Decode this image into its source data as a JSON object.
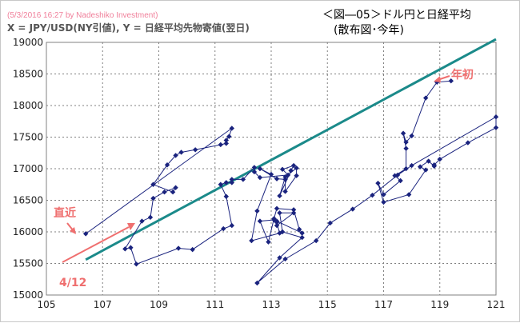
{
  "header": {
    "source_note": "(5/3/2016 16:27 by Nadeshiko Investment)",
    "axis_desc": "X = JPY/USD(NY引値), Y = 日経平均先物寄値(翌日)",
    "title_line1": "＜図―05＞ドル円と日経平均",
    "title_line2": "(散布図･今年)"
  },
  "annotations": {
    "year_start": "年初",
    "recent": "直近",
    "date": "4/12"
  },
  "colors": {
    "series": "#1a237e",
    "trend": "#1b8a8a",
    "annotation": "#ef6f6f",
    "grid": "#808080"
  },
  "chart_data": {
    "type": "scatter",
    "title": "＜図―05＞ドル円と日経平均 (散布図･今年)",
    "xlabel": "",
    "ylabel": "",
    "xlim": [
      105,
      121
    ],
    "ylim": [
      15000,
      19000
    ],
    "xticks": [
      105,
      107,
      109,
      111,
      113,
      115,
      117,
      119,
      121
    ],
    "yticks": [
      15000,
      15500,
      16000,
      16500,
      17000,
      17500,
      18000,
      18500,
      19000
    ],
    "grid": true,
    "connected": true,
    "points": [
      [
        119.4,
        18390
      ],
      [
        118.9,
        18370
      ],
      [
        118.5,
        18120
      ],
      [
        118.0,
        17520
      ],
      [
        117.8,
        17420
      ],
      [
        117.7,
        17560
      ],
      [
        117.8,
        17320
      ],
      [
        117.8,
        17000
      ],
      [
        117.4,
        16890
      ],
      [
        117.6,
        16810
      ],
      [
        117.0,
        16590
      ],
      [
        116.8,
        16770
      ],
      [
        117.0,
        16470
      ],
      [
        117.9,
        16590
      ],
      [
        118.5,
        16980
      ],
      [
        118.3,
        17030
      ],
      [
        118.6,
        17120
      ],
      [
        118.8,
        17040
      ],
      [
        118.8,
        17060
      ],
      [
        119.0,
        17150
      ],
      [
        120.0,
        17410
      ],
      [
        121.0,
        17650
      ],
      [
        121.0,
        17820
      ],
      [
        118.0,
        17050
      ],
      [
        117.5,
        16900
      ],
      [
        116.6,
        16580
      ],
      [
        115.9,
        16360
      ],
      [
        115.1,
        16140
      ],
      [
        114.6,
        15860
      ],
      [
        113.5,
        15570
      ],
      [
        112.5,
        15190
      ],
      [
        113.3,
        15590
      ],
      [
        114.1,
        15910
      ],
      [
        113.4,
        16000
      ],
      [
        113.3,
        16300
      ],
      [
        113.8,
        16300
      ],
      [
        113.2,
        16100
      ],
      [
        113.2,
        16170
      ],
      [
        114.1,
        15980
      ],
      [
        114.0,
        16040
      ],
      [
        113.8,
        16350
      ],
      [
        113.2,
        16370
      ],
      [
        113.1,
        16210
      ],
      [
        112.9,
        15840
      ],
      [
        112.6,
        16170
      ],
      [
        113.1,
        16190
      ],
      [
        113.2,
        16150
      ],
      [
        113.3,
        15980
      ],
      [
        112.3,
        15860
      ],
      [
        112.5,
        16330
      ],
      [
        113.0,
        16910
      ],
      [
        112.6,
        17000
      ],
      [
        113.2,
        16840
      ],
      [
        113.5,
        16830
      ],
      [
        113.5,
        16640
      ],
      [
        113.9,
        16890
      ],
      [
        113.9,
        17010
      ],
      [
        113.5,
        16870
      ],
      [
        113.3,
        16570
      ],
      [
        113.7,
        16970
      ],
      [
        113.8,
        17050
      ],
      [
        113.4,
        16990
      ],
      [
        113.6,
        16900
      ],
      [
        112.6,
        16860
      ],
      [
        112.4,
        16950
      ],
      [
        112.4,
        17020
      ],
      [
        112.0,
        16830
      ],
      [
        111.6,
        16830
      ],
      [
        111.6,
        16780
      ],
      [
        111.4,
        16780
      ],
      [
        111.2,
        16750
      ],
      [
        111.4,
        16560
      ],
      [
        111.6,
        16100
      ],
      [
        111.3,
        16050
      ],
      [
        110.2,
        15720
      ],
      [
        109.7,
        15740
      ],
      [
        108.2,
        15490
      ],
      [
        108.0,
        15750
      ],
      [
        107.8,
        15730
      ],
      [
        108.4,
        16170
      ],
      [
        108.7,
        16230
      ],
      [
        108.8,
        16530
      ],
      [
        109.2,
        16630
      ],
      [
        109.6,
        16700
      ],
      [
        109.5,
        16630
      ],
      [
        108.8,
        16750
      ],
      [
        109.3,
        17060
      ],
      [
        109.6,
        17210
      ],
      [
        109.8,
        17260
      ],
      [
        110.3,
        17300
      ],
      [
        111.2,
        17380
      ],
      [
        111.4,
        17400
      ],
      [
        111.4,
        17450
      ],
      [
        111.5,
        17510
      ],
      [
        111.6,
        17640
      ],
      [
        106.4,
        15970
      ]
    ],
    "trendline": [
      [
        106.4,
        15560
      ],
      [
        121.0,
        19050
      ]
    ]
  }
}
